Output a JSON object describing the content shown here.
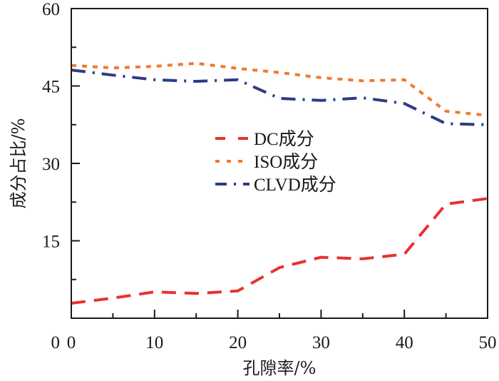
{
  "chart_data": {
    "type": "line",
    "title": "",
    "xlabel": "孔隙率/%",
    "ylabel": "成分占比/%",
    "xlim": [
      0,
      50
    ],
    "ylim": [
      0,
      60
    ],
    "xticks": [
      0,
      10,
      20,
      30,
      40,
      50
    ],
    "xtick_labels": [
      "0",
      "10",
      "20",
      "30",
      "40",
      "50"
    ],
    "xminor": [
      5,
      15,
      25,
      35,
      45
    ],
    "yticks": [
      0,
      15,
      30,
      45,
      60
    ],
    "ytick_labels": [
      "0",
      "15",
      "30",
      "45",
      "60"
    ],
    "yminor": [
      7.5,
      22.5,
      37.5,
      52.5
    ],
    "grid": false,
    "legend_position": "center",
    "x": [
      0,
      5,
      10,
      15,
      20,
      25,
      30,
      35,
      40,
      45,
      50
    ],
    "series": [
      {
        "name": "DC成分",
        "style": "dashed",
        "color": "#e8322f",
        "values": [
          2.9,
          3.9,
          5.1,
          4.8,
          5.3,
          9.8,
          11.8,
          11.5,
          12.4,
          22.1,
          23.2
        ]
      },
      {
        "name": "ISO成分",
        "style": "dotted",
        "color": "#f07a30",
        "values": [
          49.0,
          48.5,
          48.8,
          49.4,
          48.4,
          47.6,
          46.6,
          46.0,
          46.2,
          40.1,
          39.3
        ]
      },
      {
        "name": "CLVD成分",
        "style": "dashdot",
        "color": "#2e3a87",
        "values": [
          48.1,
          47.1,
          46.2,
          45.9,
          46.2,
          42.6,
          42.2,
          42.7,
          41.6,
          37.7,
          37.5
        ]
      }
    ]
  }
}
